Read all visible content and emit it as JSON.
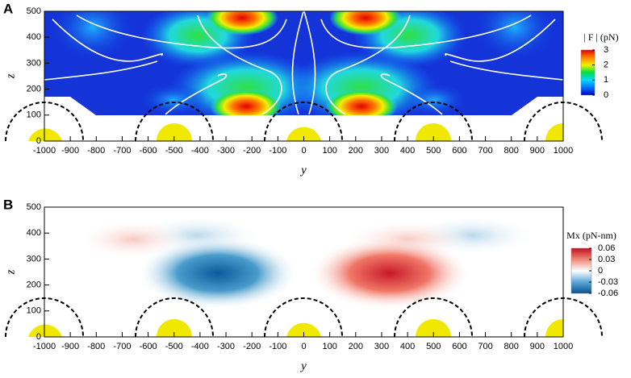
{
  "chart_data": [
    {
      "label": "A",
      "type": "heatmap",
      "xlabel": "y",
      "ylabel": "z",
      "xlim": [
        -1000,
        1000
      ],
      "xticks": [
        -1000,
        -900,
        -800,
        -700,
        -600,
        -500,
        -400,
        -300,
        -200,
        -100,
        0,
        100,
        200,
        300,
        400,
        500,
        600,
        700,
        800,
        900,
        1000
      ],
      "ylim": [
        0,
        500
      ],
      "yticks": [
        0,
        100,
        200,
        300,
        400,
        500
      ],
      "colorbar_title": "| F | (pN)",
      "clim": [
        0,
        3
      ],
      "cticks": [
        3,
        2,
        1,
        0
      ],
      "colormap": [
        "#0000c8",
        "#0070ff",
        "#00d8ff",
        "#00e040",
        "#f0f000",
        "#ff8000",
        "#e00000"
      ]
    },
    {
      "label": "B",
      "type": "heatmap",
      "xlabel": "y",
      "ylabel": "z",
      "xlim": [
        -1000,
        1000
      ],
      "xticks": [
        -1000,
        -900,
        -800,
        -700,
        -600,
        -500,
        -400,
        -300,
        -200,
        -100,
        0,
        100,
        200,
        300,
        400,
        500,
        600,
        700,
        800,
        900,
        1000
      ],
      "ylim": [
        0,
        500
      ],
      "yticks": [
        0,
        100,
        200,
        300,
        400,
        500
      ],
      "colorbar_title": "Mx (pN-nm)",
      "clim": [
        -0.06,
        0.06
      ],
      "cticks": [
        0.06,
        0.03,
        0,
        -0.03,
        -0.06
      ],
      "colormap": [
        "#0a4f8f",
        "#5aa8d8",
        "#ffffff",
        "#f08878",
        "#c01020"
      ]
    }
  ]
}
